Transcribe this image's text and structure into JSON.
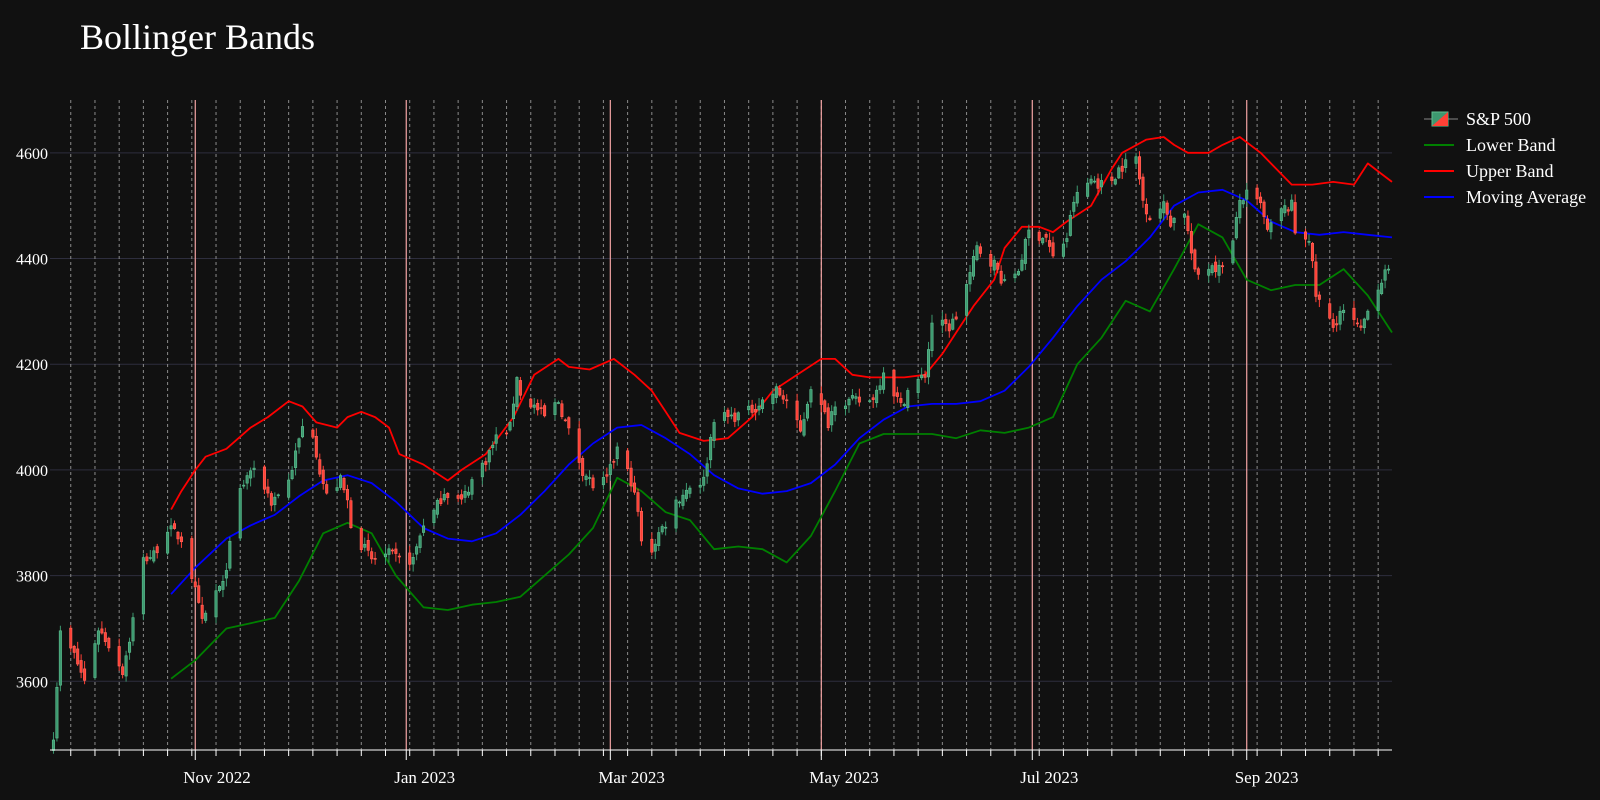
{
  "chart_data": {
    "type": "candlestick",
    "title": "Bollinger Bands",
    "xlabel": "",
    "ylabel": "",
    "x_range": [
      "2022-09-20",
      "2023-10-13"
    ],
    "y_range": [
      3470,
      4700
    ],
    "y_ticks": [
      3600,
      3800,
      4000,
      4200,
      4400,
      4600
    ],
    "x_ticks": [
      {
        "date": "2022-11-01",
        "label": "Nov 2022"
      },
      {
        "date": "2023-01-01",
        "label": "Jan 2023"
      },
      {
        "date": "2023-03-01",
        "label": "Mar 2023"
      },
      {
        "date": "2023-05-01",
        "label": "May 2023"
      },
      {
        "date": "2023-07-01",
        "label": "Jul 2023"
      },
      {
        "date": "2023-09-01",
        "label": "Sep 2023"
      }
    ],
    "grid": true,
    "legend_position": "top-right",
    "colors": {
      "background": "#111111",
      "grid": "#2e2e3e",
      "increasing": "#3d9970",
      "decreasing": "#ff4136",
      "lower_band": "#008000",
      "upper_band": "#ff0000",
      "moving_average": "#0000ff",
      "month_line": "#f4a5a5"
    },
    "series": [
      {
        "name": "S&P 500",
        "type": "candlestick"
      },
      {
        "name": "Lower Band",
        "type": "line"
      },
      {
        "name": "Upper Band",
        "type": "line"
      },
      {
        "name": "Moving Average",
        "type": "line"
      }
    ],
    "close_anchors": [
      [
        "2022-09-21",
        3500
      ],
      [
        "2022-09-23",
        3690
      ],
      [
        "2022-09-27",
        3650
      ],
      [
        "2022-09-30",
        3600
      ],
      [
        "2022-10-04",
        3700
      ],
      [
        "2022-10-07",
        3670
      ],
      [
        "2022-10-11",
        3620
      ],
      [
        "2022-10-13",
        3680
      ],
      [
        "2022-10-17",
        3830
      ],
      [
        "2022-10-20",
        3840
      ],
      [
        "2022-10-24",
        3890
      ],
      [
        "2022-10-26",
        3880
      ],
      [
        "2022-10-28",
        3870
      ],
      [
        "2022-10-31",
        3800
      ],
      [
        "2022-11-03",
        3710
      ],
      [
        "2022-11-07",
        3770
      ],
      [
        "2022-11-09",
        3780
      ],
      [
        "2022-11-10",
        3820
      ],
      [
        "2022-11-14",
        3960
      ],
      [
        "2022-11-17",
        4000
      ],
      [
        "2022-11-21",
        3970
      ],
      [
        "2022-11-23",
        3940
      ],
      [
        "2022-11-28",
        3980
      ],
      [
        "2022-11-30",
        4030
      ],
      [
        "2022-12-02",
        4080
      ],
      [
        "2022-12-05",
        4070
      ],
      [
        "2022-12-07",
        4000
      ],
      [
        "2022-12-09",
        3950
      ],
      [
        "2022-12-13",
        3980
      ],
      [
        "2022-12-15",
        3940
      ],
      [
        "2022-12-16",
        3900
      ],
      [
        "2022-12-19",
        3860
      ],
      [
        "2022-12-22",
        3830
      ],
      [
        "2022-12-27",
        3840
      ],
      [
        "2022-12-30",
        3830
      ],
      [
        "2023-01-03",
        3830
      ],
      [
        "2023-01-06",
        3900
      ],
      [
        "2023-01-09",
        3920
      ],
      [
        "2023-01-12",
        3960
      ],
      [
        "2023-01-17",
        3940
      ],
      [
        "2023-01-20",
        3980
      ],
      [
        "2023-01-24",
        4020
      ],
      [
        "2023-01-27",
        4060
      ],
      [
        "2023-01-31",
        4080
      ],
      [
        "2023-02-02",
        4180
      ],
      [
        "2023-02-03",
        4140
      ],
      [
        "2023-02-07",
        4120
      ],
      [
        "2023-02-10",
        4100
      ],
      [
        "2023-02-14",
        4130
      ],
      [
        "2023-02-16",
        4090
      ],
      [
        "2023-02-21",
        4000
      ],
      [
        "2023-02-24",
        3970
      ],
      [
        "2023-02-28",
        3980
      ],
      [
        "2023-03-03",
        4040
      ],
      [
        "2023-03-07",
        3980
      ],
      [
        "2023-03-09",
        3920
      ],
      [
        "2023-03-10",
        3860
      ],
      [
        "2023-03-13",
        3850
      ],
      [
        "2023-03-15",
        3880
      ],
      [
        "2023-03-17",
        3900
      ],
      [
        "2023-03-20",
        3940
      ],
      [
        "2023-03-24",
        3970
      ],
      [
        "2023-03-28",
        3980
      ],
      [
        "2023-03-31",
        4100
      ],
      [
        "2023-04-05",
        4100
      ],
      [
        "2023-04-10",
        4110
      ],
      [
        "2023-04-14",
        4130
      ],
      [
        "2023-04-18",
        4150
      ],
      [
        "2023-04-21",
        4130
      ],
      [
        "2023-04-25",
        4070
      ],
      [
        "2023-04-28",
        4160
      ],
      [
        "2023-05-03",
        4090
      ],
      [
        "2023-05-05",
        4130
      ],
      [
        "2023-05-10",
        4130
      ],
      [
        "2023-05-15",
        4130
      ],
      [
        "2023-05-17",
        4150
      ],
      [
        "2023-05-19",
        4190
      ],
      [
        "2023-05-24",
        4120
      ],
      [
        "2023-05-26",
        4150
      ],
      [
        "2023-05-31",
        4180
      ],
      [
        "2023-06-02",
        4280
      ],
      [
        "2023-06-07",
        4270
      ],
      [
        "2023-06-09",
        4290
      ],
      [
        "2023-06-13",
        4370
      ],
      [
        "2023-06-15",
        4420
      ],
      [
        "2023-06-20",
        4390
      ],
      [
        "2023-06-23",
        4350
      ],
      [
        "2023-06-27",
        4380
      ],
      [
        "2023-06-30",
        4450
      ],
      [
        "2023-07-05",
        4440
      ],
      [
        "2023-07-07",
        4400
      ],
      [
        "2023-07-11",
        4440
      ],
      [
        "2023-07-13",
        4510
      ],
      [
        "2023-07-18",
        4550
      ],
      [
        "2023-07-21",
        4540
      ],
      [
        "2023-07-24",
        4550
      ],
      [
        "2023-07-26",
        4570
      ],
      [
        "2023-07-28",
        4580
      ],
      [
        "2023-07-31",
        4590
      ],
      [
        "2023-08-02",
        4510
      ],
      [
        "2023-08-04",
        4480
      ],
      [
        "2023-08-08",
        4500
      ],
      [
        "2023-08-10",
        4470
      ],
      [
        "2023-08-14",
        4490
      ],
      [
        "2023-08-17",
        4370
      ],
      [
        "2023-08-18",
        4370
      ],
      [
        "2023-08-22",
        4390
      ],
      [
        "2023-08-24",
        4380
      ],
      [
        "2023-08-28",
        4430
      ],
      [
        "2023-08-30",
        4510
      ],
      [
        "2023-09-01",
        4520
      ],
      [
        "2023-09-05",
        4500
      ],
      [
        "2023-09-07",
        4450
      ],
      [
        "2023-09-11",
        4490
      ],
      [
        "2023-09-14",
        4500
      ],
      [
        "2023-09-15",
        4450
      ],
      [
        "2023-09-19",
        4440
      ],
      [
        "2023-09-21",
        4330
      ],
      [
        "2023-09-26",
        4270
      ],
      [
        "2023-09-28",
        4300
      ],
      [
        "2023-10-02",
        4280
      ],
      [
        "2023-10-04",
        4260
      ],
      [
        "2023-10-06",
        4310
      ],
      [
        "2023-10-10",
        4360
      ],
      [
        "2023-10-12",
        4380
      ]
    ],
    "upper_band": [
      [
        "2022-10-25",
        3925
      ],
      [
        "2022-10-28",
        3960
      ],
      [
        "2022-11-01",
        4000
      ],
      [
        "2022-11-04",
        4025
      ],
      [
        "2022-11-10",
        4040
      ],
      [
        "2022-11-17",
        4080
      ],
      [
        "2022-11-22",
        4100
      ],
      [
        "2022-11-28",
        4130
      ],
      [
        "2022-12-02",
        4120
      ],
      [
        "2022-12-06",
        4090
      ],
      [
        "2022-12-12",
        4080
      ],
      [
        "2022-12-15",
        4100
      ],
      [
        "2022-12-19",
        4110
      ],
      [
        "2022-12-23",
        4100
      ],
      [
        "2022-12-27",
        4080
      ],
      [
        "2022-12-30",
        4030
      ],
      [
        "2023-01-06",
        4010
      ],
      [
        "2023-01-13",
        3980
      ],
      [
        "2023-01-17",
        4000
      ],
      [
        "2023-01-24",
        4030
      ],
      [
        "2023-02-01",
        4100
      ],
      [
        "2023-02-07",
        4180
      ],
      [
        "2023-02-14",
        4210
      ],
      [
        "2023-02-17",
        4195
      ],
      [
        "2023-02-23",
        4190
      ],
      [
        "2023-03-02",
        4210
      ],
      [
        "2023-03-08",
        4180
      ],
      [
        "2023-03-13",
        4150
      ],
      [
        "2023-03-17",
        4110
      ],
      [
        "2023-03-21",
        4070
      ],
      [
        "2023-03-28",
        4055
      ],
      [
        "2023-04-04",
        4060
      ],
      [
        "2023-04-11",
        4100
      ],
      [
        "2023-04-17",
        4150
      ],
      [
        "2023-04-24",
        4180
      ],
      [
        "2023-05-01",
        4210
      ],
      [
        "2023-05-05",
        4210
      ],
      [
        "2023-05-10",
        4180
      ],
      [
        "2023-05-15",
        4175
      ],
      [
        "2023-05-25",
        4175
      ],
      [
        "2023-05-31",
        4180
      ],
      [
        "2023-06-05",
        4220
      ],
      [
        "2023-06-09",
        4260
      ],
      [
        "2023-06-14",
        4310
      ],
      [
        "2023-06-20",
        4360
      ],
      [
        "2023-06-23",
        4420
      ],
      [
        "2023-06-28",
        4460
      ],
      [
        "2023-07-03",
        4460
      ],
      [
        "2023-07-07",
        4450
      ],
      [
        "2023-07-11",
        4470
      ],
      [
        "2023-07-18",
        4500
      ],
      [
        "2023-07-24",
        4570
      ],
      [
        "2023-07-27",
        4600
      ],
      [
        "2023-08-03",
        4625
      ],
      [
        "2023-08-08",
        4630
      ],
      [
        "2023-08-11",
        4615
      ],
      [
        "2023-08-15",
        4600
      ],
      [
        "2023-08-21",
        4600
      ],
      [
        "2023-08-25",
        4615
      ],
      [
        "2023-08-30",
        4630
      ],
      [
        "2023-09-05",
        4600
      ],
      [
        "2023-09-11",
        4560
      ],
      [
        "2023-09-14",
        4540
      ],
      [
        "2023-09-20",
        4540
      ],
      [
        "2023-09-26",
        4545
      ],
      [
        "2023-10-02",
        4540
      ],
      [
        "2023-10-06",
        4580
      ],
      [
        "2023-10-10",
        4560
      ],
      [
        "2023-10-13",
        4545
      ]
    ],
    "moving_average": [
      [
        "2022-10-25",
        3765
      ],
      [
        "2022-11-01",
        3815
      ],
      [
        "2022-11-10",
        3870
      ],
      [
        "2022-11-17",
        3895
      ],
      [
        "2022-11-24",
        3915
      ],
      [
        "2022-12-01",
        3950
      ],
      [
        "2022-12-08",
        3980
      ],
      [
        "2022-12-15",
        3990
      ],
      [
        "2022-12-22",
        3975
      ],
      [
        "2022-12-29",
        3940
      ],
      [
        "2023-01-06",
        3890
      ],
      [
        "2023-01-13",
        3870
      ],
      [
        "2023-01-20",
        3865
      ],
      [
        "2023-01-27",
        3880
      ],
      [
        "2023-02-03",
        3915
      ],
      [
        "2023-02-10",
        3960
      ],
      [
        "2023-02-17",
        4010
      ],
      [
        "2023-02-24",
        4050
      ],
      [
        "2023-03-03",
        4080
      ],
      [
        "2023-03-10",
        4085
      ],
      [
        "2023-03-17",
        4060
      ],
      [
        "2023-03-24",
        4030
      ],
      [
        "2023-03-31",
        3990
      ],
      [
        "2023-04-07",
        3965
      ],
      [
        "2023-04-14",
        3955
      ],
      [
        "2023-04-21",
        3960
      ],
      [
        "2023-04-28",
        3975
      ],
      [
        "2023-05-05",
        4010
      ],
      [
        "2023-05-12",
        4060
      ],
      [
        "2023-05-19",
        4095
      ],
      [
        "2023-05-26",
        4120
      ],
      [
        "2023-06-02",
        4125
      ],
      [
        "2023-06-09",
        4125
      ],
      [
        "2023-06-16",
        4130
      ],
      [
        "2023-06-23",
        4150
      ],
      [
        "2023-06-30",
        4195
      ],
      [
        "2023-07-07",
        4250
      ],
      [
        "2023-07-14",
        4310
      ],
      [
        "2023-07-21",
        4360
      ],
      [
        "2023-07-28",
        4395
      ],
      [
        "2023-08-04",
        4440
      ],
      [
        "2023-08-11",
        4500
      ],
      [
        "2023-08-18",
        4525
      ],
      [
        "2023-08-25",
        4530
      ],
      [
        "2023-09-01",
        4510
      ],
      [
        "2023-09-08",
        4470
      ],
      [
        "2023-09-15",
        4450
      ],
      [
        "2023-09-22",
        4445
      ],
      [
        "2023-09-29",
        4450
      ],
      [
        "2023-10-06",
        4445
      ],
      [
        "2023-10-13",
        4440
      ]
    ],
    "lower_band": [
      [
        "2022-10-25",
        3605
      ],
      [
        "2022-11-01",
        3640
      ],
      [
        "2022-11-10",
        3700
      ],
      [
        "2022-11-17",
        3710
      ],
      [
        "2022-11-24",
        3720
      ],
      [
        "2022-12-01",
        3790
      ],
      [
        "2022-12-08",
        3880
      ],
      [
        "2022-12-15",
        3900
      ],
      [
        "2022-12-22",
        3880
      ],
      [
        "2022-12-29",
        3800
      ],
      [
        "2023-01-06",
        3740
      ],
      [
        "2023-01-13",
        3735
      ],
      [
        "2023-01-20",
        3745
      ],
      [
        "2023-01-27",
        3750
      ],
      [
        "2023-02-03",
        3760
      ],
      [
        "2023-02-10",
        3800
      ],
      [
        "2023-02-17",
        3840
      ],
      [
        "2023-02-24",
        3890
      ],
      [
        "2023-03-03",
        3985
      ],
      [
        "2023-03-10",
        3960
      ],
      [
        "2023-03-17",
        3920
      ],
      [
        "2023-03-24",
        3905
      ],
      [
        "2023-03-31",
        3850
      ],
      [
        "2023-04-07",
        3855
      ],
      [
        "2023-04-14",
        3850
      ],
      [
        "2023-04-21",
        3825
      ],
      [
        "2023-04-28",
        3875
      ],
      [
        "2023-05-05",
        3960
      ],
      [
        "2023-05-12",
        4050
      ],
      [
        "2023-05-19",
        4068
      ],
      [
        "2023-05-26",
        4068
      ],
      [
        "2023-06-02",
        4068
      ],
      [
        "2023-06-09",
        4060
      ],
      [
        "2023-06-16",
        4075
      ],
      [
        "2023-06-23",
        4070
      ],
      [
        "2023-06-30",
        4080
      ],
      [
        "2023-07-07",
        4100
      ],
      [
        "2023-07-14",
        4200
      ],
      [
        "2023-07-21",
        4250
      ],
      [
        "2023-07-28",
        4320
      ],
      [
        "2023-08-04",
        4300
      ],
      [
        "2023-08-11",
        4380
      ],
      [
        "2023-08-18",
        4465
      ],
      [
        "2023-08-25",
        4440
      ],
      [
        "2023-09-01",
        4360
      ],
      [
        "2023-09-08",
        4340
      ],
      [
        "2023-09-15",
        4350
      ],
      [
        "2023-09-22",
        4350
      ],
      [
        "2023-09-29",
        4380
      ],
      [
        "2023-10-06",
        4330
      ],
      [
        "2023-10-13",
        4260
      ]
    ]
  },
  "legend": {
    "candle_label": "S&P 500",
    "lower_label": "Lower Band",
    "upper_label": "Upper Band",
    "ma_label": "Moving Average"
  }
}
